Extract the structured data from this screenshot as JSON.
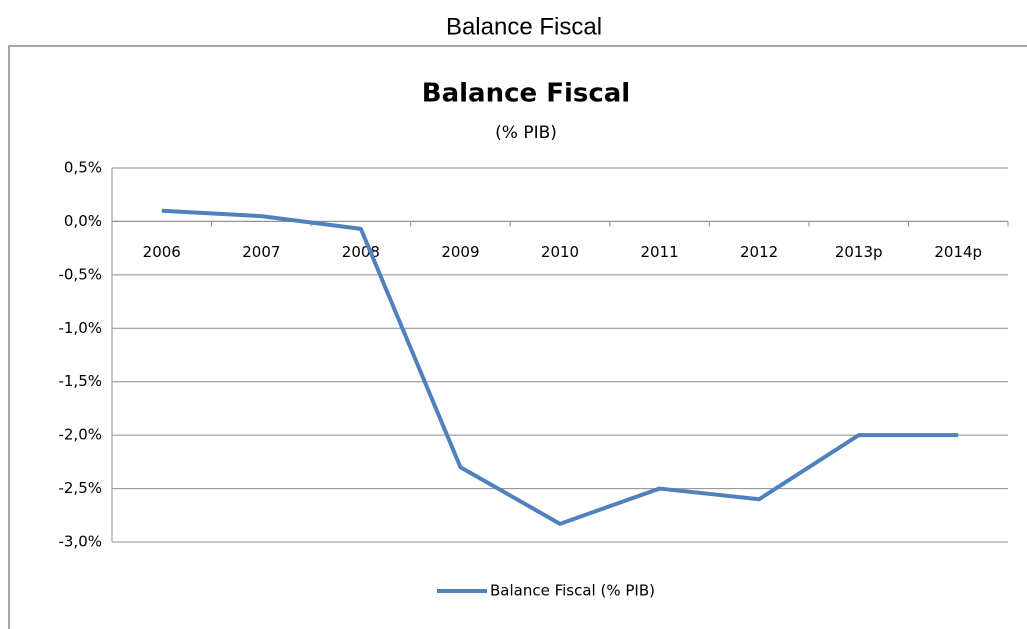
{
  "page_title": "Balance Fiscal",
  "chart_data": {
    "type": "line",
    "title": "Balance Fiscal",
    "subtitle": "(% PIB)",
    "categories": [
      "2006",
      "2007",
      "2008",
      "2009",
      "2010",
      "2011",
      "2012",
      "2013p",
      "2014p"
    ],
    "series": [
      {
        "name": "Balance Fiscal (% PIB)",
        "color": "#4f81bd",
        "values": [
          0.1,
          0.05,
          -0.07,
          -2.3,
          -2.83,
          -2.5,
          -2.6,
          -2.0,
          -2.0
        ]
      }
    ],
    "ylim": [
      -3.0,
      0.5
    ],
    "yticks": [
      {
        "value": 0.5,
        "label": "0,5%"
      },
      {
        "value": 0.0,
        "label": "0,0%"
      },
      {
        "value": -0.5,
        "label": "-0,5%"
      },
      {
        "value": -1.0,
        "label": "-1,0%"
      },
      {
        "value": -1.5,
        "label": "-1,5%"
      },
      {
        "value": -2.0,
        "label": "-2,0%"
      },
      {
        "value": -2.5,
        "label": "-2,5%"
      },
      {
        "value": -3.0,
        "label": "-3,0%"
      }
    ],
    "grid": true,
    "legend": "bottom"
  }
}
